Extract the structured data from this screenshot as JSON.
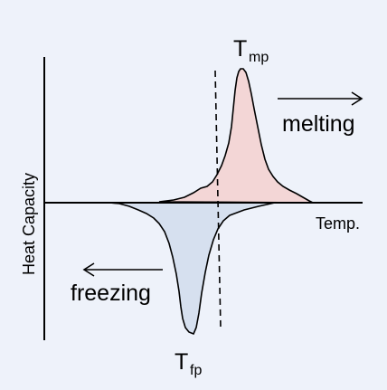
{
  "diagram": {
    "y_axis_label": "Heat Capacity",
    "x_axis_label": "Temp.",
    "melting": {
      "label": "melting",
      "peak_symbol": "T",
      "peak_subscript": "mp",
      "fill": "#f3d6d6"
    },
    "freezing": {
      "label": "freezing",
      "peak_symbol": "T",
      "peak_subscript": "fp",
      "fill": "#d6e0ef"
    },
    "colors": {
      "line": "#000000",
      "background": "#eef2fa"
    }
  }
}
